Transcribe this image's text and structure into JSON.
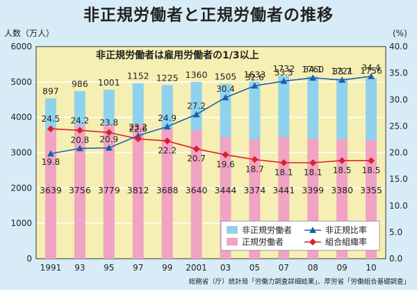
{
  "chart_title": "非正規労働者と正規労働者の推移",
  "source": "総務省（庁）統計局「労働力調査詳細結果」、厚労省「労働組合基礎調査」",
  "chart_data": {
    "type": "bar",
    "title": "非正規労働者と正規労働者の推移",
    "subtitle": "非正規労働者は雇用労働者の1/3以上",
    "ylabel": "人数（万人）",
    "y2label": "(%)",
    "ylim": [
      0,
      6000
    ],
    "y2lim": [
      0,
      40
    ],
    "yticks": [
      "0",
      "1000",
      "2000",
      "3000",
      "4000",
      "5000",
      "6000"
    ],
    "y2ticks": [
      "0.0",
      "5.0",
      "10.0",
      "15.0",
      "20.0",
      "25.0",
      "30.0",
      "35.0",
      "40.0"
    ],
    "categories": [
      "1991",
      "93",
      "95",
      "97",
      "99",
      "2001",
      "03",
      "05",
      "07",
      "08",
      "09",
      "10"
    ],
    "series": [
      {
        "name": "正規労働者",
        "kind": "stacked-bar",
        "color": "#f0a3c3",
        "values": [
          3639,
          3756,
          3779,
          3812,
          3688,
          3640,
          3444,
          3374,
          3441,
          3399,
          3380,
          3355
        ],
        "labels": [
          "3639",
          "3756",
          "3779",
          "3812",
          "3688",
          "3640",
          "3444",
          "3374",
          "3441",
          "3399",
          "3380",
          "3355"
        ]
      },
      {
        "name": "非正規労働者",
        "kind": "stacked-bar",
        "color": "#8fd2ee",
        "values": [
          897,
          986,
          1001,
          1152,
          1225,
          1360,
          1505,
          1633,
          1732,
          1760,
          1721,
          1756
        ],
        "labels": [
          "897",
          "986",
          "1001",
          "1152",
          "1225",
          "1360",
          "1505",
          "1633",
          "1732",
          "1760",
          "1721",
          "1756"
        ]
      },
      {
        "name": "非正規比率",
        "kind": "line",
        "axis": "right",
        "color": "#1f5fa8",
        "marker": "triangle",
        "values": [
          19.8,
          20.8,
          20.9,
          23.2,
          24.9,
          27.2,
          30.4,
          32.6,
          33.5,
          34.1,
          33.7,
          34.4
        ],
        "labels": [
          "19.8",
          "20.8",
          "20.9",
          "23.2",
          "24.9",
          "27.2",
          "30.4",
          "32.6",
          "33.5",
          "34.1",
          "33.7",
          "34.4"
        ]
      },
      {
        "name": "組合組織率",
        "kind": "line",
        "axis": "right",
        "color": "#d8232a",
        "marker": "diamond",
        "values": [
          24.5,
          24.2,
          23.8,
          22.6,
          22.2,
          20.7,
          19.6,
          18.7,
          18.1,
          18.1,
          18.5,
          18.5
        ],
        "labels": [
          "24.5",
          "24.2",
          "23.8",
          "22.6",
          "22.2",
          "20.7",
          "19.6",
          "18.7",
          "18.1",
          "18.1",
          "18.5",
          "18.5"
        ]
      }
    ],
    "legend": [
      "非正規労働者",
      "正規労働者",
      "非正規比率",
      "組合組織率"
    ],
    "legend_position": "bottom-right",
    "grid": true
  }
}
